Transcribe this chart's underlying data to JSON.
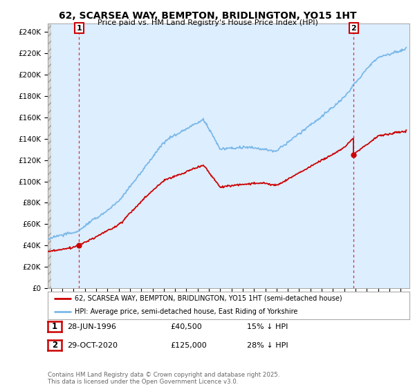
{
  "title": "62, SCARSEA WAY, BEMPTON, BRIDLINGTON, YO15 1HT",
  "subtitle": "Price paid vs. HM Land Registry's House Price Index (HPI)",
  "ylabel_ticks": [
    "£0",
    "£20K",
    "£40K",
    "£60K",
    "£80K",
    "£100K",
    "£120K",
    "£140K",
    "£160K",
    "£180K",
    "£200K",
    "£220K",
    "£240K"
  ],
  "ytick_values": [
    0,
    20000,
    40000,
    60000,
    80000,
    100000,
    120000,
    140000,
    160000,
    180000,
    200000,
    220000,
    240000
  ],
  "ylim": [
    0,
    248000
  ],
  "xlim_start": 1993.7,
  "xlim_end": 2025.8,
  "hpi_color": "#7ab8e8",
  "price_color": "#cc0000",
  "sale1_date": 1996.49,
  "sale1_price": 40500,
  "sale2_date": 2020.83,
  "sale2_price": 125000,
  "legend_label1": "62, SCARSEA WAY, BEMPTON, BRIDLINGTON, YO15 1HT (semi-detached house)",
  "legend_label2": "HPI: Average price, semi-detached house, East Riding of Yorkshire",
  "annotation1_label": "1",
  "annotation2_label": "2",
  "table_row1": [
    "1",
    "28-JUN-1996",
    "£40,500",
    "15% ↓ HPI"
  ],
  "table_row2": [
    "2",
    "29-OCT-2020",
    "£125,000",
    "28% ↓ HPI"
  ],
  "footer": "Contains HM Land Registry data © Crown copyright and database right 2025.\nThis data is licensed under the Open Government Licence v3.0.",
  "bg_color": "#ffffff",
  "plot_bg_color": "#ddeeff",
  "hatch_color": "#c8c8c8",
  "grid_color": "#cccccc"
}
